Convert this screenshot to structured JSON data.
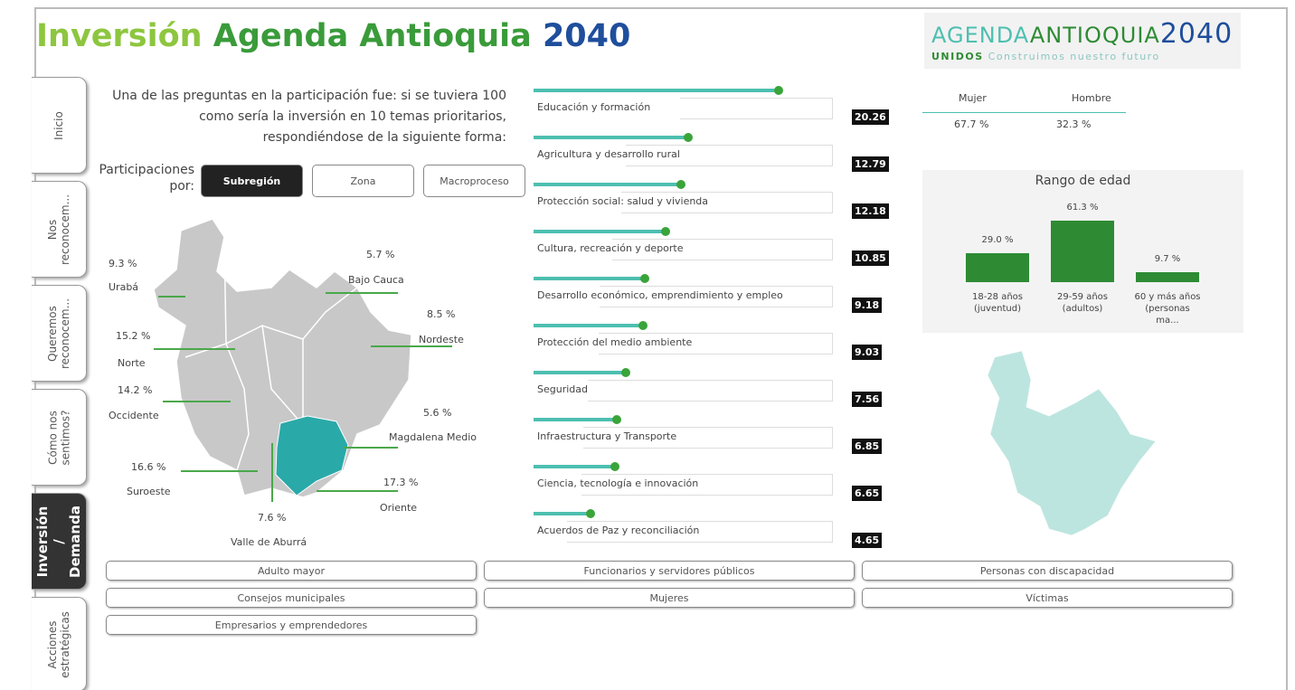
{
  "header": {
    "title_1": "Inversión",
    "title_2": "Agenda Antioquia",
    "title_3": "2040",
    "logo_1": "AGENDA",
    "logo_2": "ANTIOQUIA",
    "logo_3": "2040",
    "logo_4": "UNIDOS",
    "logo_5": "Construimos nuestro futuro"
  },
  "nav": [
    "Inicio",
    "Nos reconocem...",
    "Queremos reconocem...",
    "Cómo nos sentimos?",
    "Inversión / Demanda",
    "Acciones estratégicas"
  ],
  "intro": [
    "Una de las preguntas en la participación fue: si se tuviera 100",
    "como sería la inversión en 10 temas prioritarios,",
    "respondiéndose de la siguiente forma:"
  ],
  "participaciones": {
    "label_1": "Participaciones",
    "label_2": "por:",
    "buttons": [
      "Subregión",
      "Zona",
      "Macroproceso"
    ]
  },
  "map": {
    "regions": [
      {
        "name": "Urabá",
        "value": "9.3 %"
      },
      {
        "name": "Bajo Cauca",
        "value": "5.7 %"
      },
      {
        "name": "Nordeste",
        "value": "8.5 %"
      },
      {
        "name": "Norte",
        "value": "15.2 %"
      },
      {
        "name": "Occidente",
        "value": "14.2 %"
      },
      {
        "name": "Magdalena Medio",
        "value": "5.6 %"
      },
      {
        "name": "Suroeste",
        "value": "16.6 %"
      },
      {
        "name": "Oriente",
        "value": "17.3 %"
      },
      {
        "name": "Valle de Aburrá",
        "value": "7.6 %"
      }
    ]
  },
  "chart_data": [
    {
      "type": "lollipop",
      "categories": [
        "Educación y formación",
        "Agricultura y desarrollo rural",
        "Protección social: salud y vivienda",
        "Cultura, recreación y deporte",
        "Desarrollo económico, emprendimiento y empleo",
        "Protección del medio ambiente",
        "Seguridad",
        "Infraestructura y Transporte",
        "Ciencia, tecnología e innovación",
        "Acuerdos de Paz y reconciliación"
      ],
      "values": [
        20.26,
        12.79,
        12.18,
        10.85,
        9.18,
        9.03,
        7.56,
        6.85,
        6.65,
        4.65
      ],
      "color": "#4dbfb0",
      "dot_color": "#3aa43a"
    },
    {
      "type": "bar",
      "title": "Rango de edad",
      "categories": [
        "18-28 años (juventud)",
        "29-59 años (adultos)",
        "60 y más años (personas ma..."
      ],
      "values": [
        29.0,
        61.3,
        9.7
      ],
      "value_labels": [
        "29.0 %",
        "61.3 %",
        "9.7 %"
      ],
      "color": "#2e8b34"
    }
  ],
  "gender": {
    "headers": [
      "Mujer",
      "Hombre"
    ],
    "values": [
      "67.7 %",
      "32.3 %"
    ]
  },
  "filters": [
    "Adulto mayor",
    "Funcionarios y servidores públicos",
    "Personas con discapacidad",
    "Consejos municipales",
    "Mujeres",
    "Víctimas",
    "Empresarios y emprendedores"
  ]
}
